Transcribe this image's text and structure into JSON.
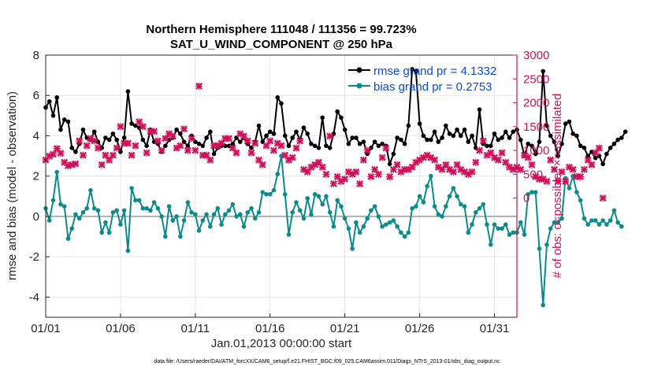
{
  "chart_data": {
    "type": "line",
    "title_line1": "Northern Hemisphere 111048 / 111356 = 99.723%",
    "title_line2": "SAT_U_WIND_COMPONENT @ 250 hPa",
    "xlabel": "Jan.01,2013 00:00:00 start",
    "ylabel_left": "rmse and bias (model - observation)",
    "ylabel_right": "# of obs: o=possible; ×=assimilated",
    "footnote": "data file: /Users/raeder/DAI/ATM_forcXX/CAM6_setup/f.e21.FHIST_BGC.f09_025.CAM6assim.011/Diags_NTrS_2013-01/obs_diag_output.nc",
    "xlim": [
      0,
      31.5
    ],
    "ylim_left": [
      -5,
      8
    ],
    "ylim_right": [
      -2500,
      3000
    ],
    "x_tick_labels": [
      "01/01",
      "01/06",
      "01/11",
      "01/16",
      "01/21",
      "01/26",
      "01/31"
    ],
    "x_tick_values": [
      0,
      5,
      10,
      15,
      20,
      25,
      30
    ],
    "y_left_ticks": [
      -4,
      -2,
      0,
      2,
      4,
      6,
      8
    ],
    "y_right_ticks": [
      0,
      500,
      1000,
      1500,
      2000,
      2500,
      3000
    ],
    "zero_line": 0,
    "colors": {
      "rmse": "#000000",
      "bias": "#0d8b8b",
      "obs": "#d0105a",
      "legend_text": "#0a4ad9",
      "zero_line": "#b0b0b0",
      "grid": "#e6e6e6"
    },
    "series": [
      {
        "name": "rmse",
        "legend": "rmse grand pr = 4.1332",
        "axis": "left",
        "x_start": 0,
        "x_step": 0.25,
        "values": [
          5.4,
          5.7,
          5.0,
          5.9,
          4.3,
          4.8,
          4.7,
          3.4,
          3.2,
          3.6,
          4.3,
          3.9,
          3.8,
          4.2,
          3.7,
          3.4,
          3.9,
          3.8,
          4.1,
          3.8,
          3.2,
          3.9,
          6.2,
          4.6,
          4.5,
          4.4,
          3.8,
          3.5,
          4.3,
          3.7,
          3.6,
          3.2,
          3.5,
          3.8,
          3.9,
          4.3,
          4.1,
          3.7,
          3.5,
          4.0,
          3.7,
          3.6,
          3.5,
          3.9,
          4.2,
          3.1,
          3.4,
          3.5,
          3.5,
          3.5,
          3.6,
          3.9,
          3.7,
          3.9,
          3.6,
          3.4,
          3.7,
          4.5,
          3.7,
          4.0,
          4.2,
          4.1,
          5.9,
          5.6,
          4.0,
          3.5,
          3.9,
          4.2,
          3.8,
          4.4,
          4.1,
          3.6,
          3.5,
          3.4,
          4.9,
          3.5,
          3.4,
          4.1,
          5.2,
          4.9,
          4.3,
          3.6,
          3.9,
          3.9,
          3.6,
          3.7,
          3.1,
          3.4,
          3.7,
          3.5,
          3.6,
          3.5,
          2.6,
          3.1,
          3.9,
          3.8,
          3.6,
          4.5,
          7.3,
          7.2,
          4.6,
          4.0,
          3.8,
          3.8,
          4.2,
          3.7,
          3.9,
          4.5,
          4.1,
          4.0,
          4.3,
          4.0,
          4.3,
          3.7,
          4.0,
          3.4,
          5.3,
          3.6,
          3.5,
          3.5,
          4.1,
          3.8,
          3.9,
          4.2,
          3.9,
          4.2,
          4.3,
          3.8,
          3.0,
          3.6,
          3.5,
          3.1,
          3.7,
          7.2,
          4.5,
          4.0,
          3.7,
          3.0,
          3.6,
          4.6,
          4.7,
          4.1,
          4.0,
          3.5,
          3.4,
          3.0,
          3.2,
          2.9,
          3.0,
          2.6,
          3.1,
          3.4,
          3.6,
          3.8,
          3.9,
          4.2
        ]
      },
      {
        "name": "bias",
        "legend": "bias grand pr = 0.2753",
        "axis": "left",
        "x_start": 0,
        "x_step": 0.25,
        "values": [
          0.4,
          -0.2,
          0.8,
          2.2,
          0.6,
          0.5,
          -1.1,
          -0.6,
          0.1,
          -0.1,
          0.2,
          0.4,
          1.3,
          0.4,
          0.3,
          -0.8,
          -0.3,
          -0.8,
          0.2,
          0.3,
          -0.4,
          0.3,
          -1.7,
          1.4,
          0.8,
          0.8,
          0.4,
          0.4,
          0.3,
          0.7,
          0.4,
          0.0,
          -1.0,
          0.5,
          -0.2,
          0.0,
          -1.0,
          -0.2,
          0.7,
          0.2,
          0.1,
          -0.7,
          -0.2,
          0.1,
          -0.5,
          0.1,
          0.4,
          -0.4,
          0.1,
          0.3,
          0.6,
          0.0,
          0.1,
          -0.5,
          0.2,
          0.4,
          -0.1,
          0.2,
          1.2,
          1.1,
          1.1,
          1.3,
          2.1,
          3.0,
          1.1,
          -0.9,
          0.2,
          0.7,
          0.3,
          -0.1,
          0.9,
          0.1,
          1.1,
          1.0,
          0.6,
          1.0,
          0.2,
          -0.5,
          0.8,
          0.5,
          -0.1,
          -0.6,
          -1.6,
          -0.3,
          -0.8,
          -0.5,
          -0.1,
          0.3,
          0.5,
          0.0,
          -0.5,
          -0.4,
          -0.3,
          -0.2,
          -0.5,
          -0.8,
          -1.0,
          -0.8,
          0.4,
          0.5,
          1.0,
          0.7,
          1.5,
          2.0,
          0.5,
          0.1,
          0.0,
          0.5,
          1.0,
          1.4,
          1.0,
          0.6,
          0.5,
          -0.8,
          -0.4,
          0.2,
          0.4,
          0.6,
          -0.4,
          -1.4,
          -0.4,
          -0.6,
          -0.6,
          -0.4,
          -0.9,
          -0.8,
          -0.8,
          -0.3,
          -0.9,
          1.1,
          1.2,
          1.2,
          -1.6,
          -4.4,
          -1.4,
          -0.6,
          -0.3,
          -0.3,
          -0.1,
          1.9,
          1.4,
          2.0,
          1.2,
          0.8,
          -0.1,
          -0.4,
          -0.2,
          -0.2,
          -0.4,
          -0.2,
          -0.4,
          -0.2,
          0.3,
          -0.3,
          -0.5
        ]
      },
      {
        "name": "obs_assimilated",
        "axis": "right",
        "marker": "x",
        "x_start": 0,
        "x_step": 0.25,
        "values": [
          800,
          880,
          920,
          1040,
          940,
          750,
          680,
          700,
          720,
          1200,
          900,
          1100,
          1250,
          1200,
          1050,
          700,
          900,
          800,
          900,
          1050,
          1500,
          1150,
          1150,
          900,
          1100,
          1600,
          1500,
          950,
          1400,
          1400,
          1200,
          1000,
          1250,
          1350,
          1300,
          1050,
          1100,
          1450,
          1000,
          1250,
          1000,
          2350,
          900,
          900,
          800,
          1100,
          1100,
          1150,
          1250,
          1250,
          1050,
          950,
          1350,
          1300,
          1200,
          950,
          1150,
          800,
          700,
          1100,
          1200,
          1000,
          1150,
          1100,
          900,
          800,
          850,
          1050,
          1200,
          600,
          550,
          650,
          700,
          750,
          650,
          500,
          1300,
          300,
          450,
          350,
          400,
          550,
          500,
          550,
          300,
          800,
          1000,
          450,
          600,
          500,
          850,
          1050,
          450,
          600,
          700,
          550,
          600,
          600,
          650,
          750,
          800,
          850,
          900,
          850,
          800,
          650,
          600,
          700,
          600,
          550,
          700,
          600,
          550,
          500,
          550,
          750,
          1000,
          1200,
          900,
          950,
          850,
          800,
          950,
          750,
          650,
          600,
          650,
          600,
          900,
          850,
          700,
          450,
          400,
          400,
          350,
          800,
          600,
          350,
          550,
          350,
          650,
          600,
          450,
          450,
          600,
          800,
          700,
          950,
          1050,
          0
        ]
      }
    ]
  }
}
